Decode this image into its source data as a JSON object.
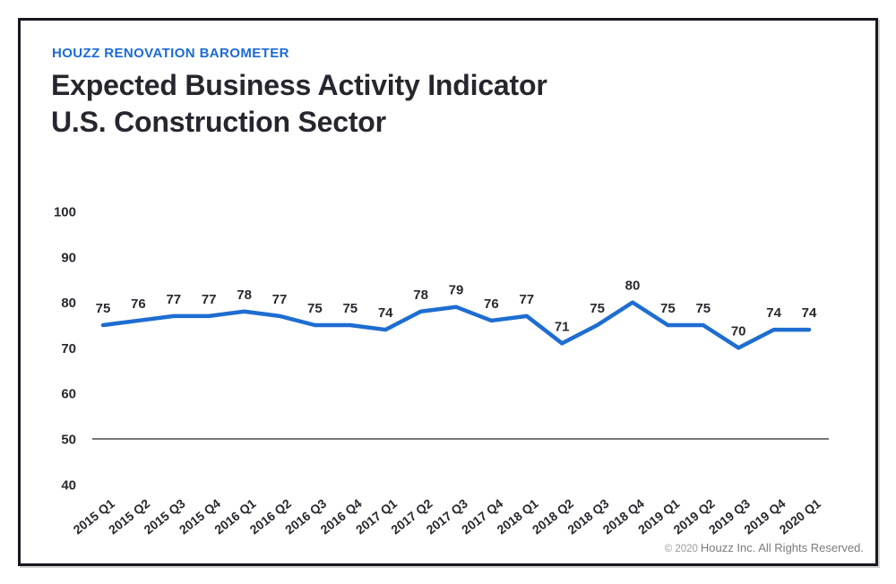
{
  "header": {
    "eyebrow": "HOUZZ RENOVATION BAROMETER",
    "title_line1": "Expected Business Activity Indicator",
    "title_line2": "U.S. Construction Sector"
  },
  "footer": {
    "copyright_prefix": "© 2020",
    "copyright_text": "Houzz Inc. All Rights Reserved."
  },
  "colors": {
    "accent_text": "#1b6bd6",
    "line": "#1e6dd1",
    "baseline": "#4a4a4a",
    "title_text": "#26262e",
    "label_text": "#28282f",
    "footer_text": "#7b7b7b",
    "frame_border": "#17171f"
  },
  "chart_data": {
    "type": "line",
    "title": "Expected Business Activity Indicator — U.S. Construction Sector",
    "categories": [
      "2015 Q1",
      "2015 Q2",
      "2015 Q3",
      "2015 Q4",
      "2016 Q1",
      "2016 Q2",
      "2016 Q3",
      "2016 Q4",
      "2017 Q1",
      "2017 Q2",
      "2017 Q3",
      "2017 Q4",
      "2018 Q1",
      "2018 Q2",
      "2018 Q3",
      "2018 Q4",
      "2019 Q1",
      "2019 Q2",
      "2019 Q3",
      "2019 Q4",
      "2020 Q1"
    ],
    "values": [
      75,
      76,
      77,
      77,
      78,
      77,
      75,
      75,
      74,
      78,
      79,
      76,
      77,
      71,
      75,
      80,
      75,
      75,
      70,
      74,
      74
    ],
    "xlabel": "",
    "ylabel": "",
    "ylim": [
      40,
      100
    ],
    "yticks": [
      100,
      90,
      80,
      70,
      60,
      50,
      40
    ],
    "baseline_value": 50,
    "grid": false,
    "data_labels": true,
    "legend_position": "none"
  }
}
